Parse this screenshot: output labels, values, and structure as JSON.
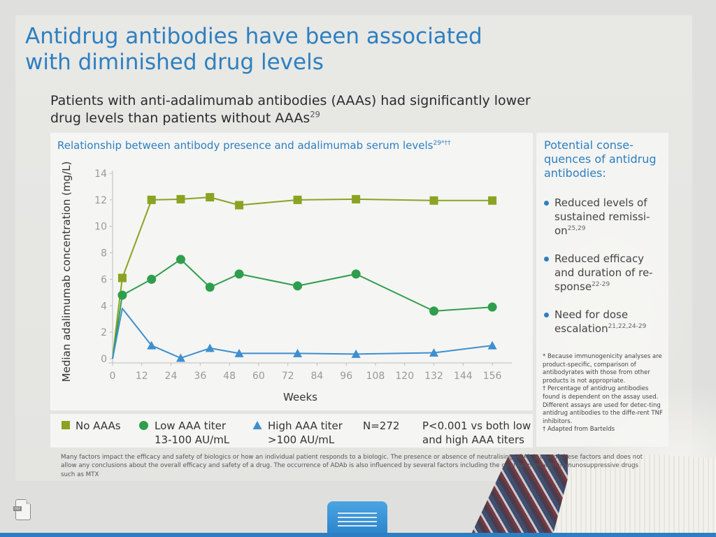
{
  "title": "Antidrug antibodies have been associated with diminished drug levels",
  "subtitle": {
    "text": "Patients with anti-adalimumab antibodies (AAAs) had significantly lower drug levels than patients without AAAs",
    "sup": "29"
  },
  "chart_title": {
    "text": "Relationship between antibody presence and adalimumab serum levels",
    "sup": "29*††"
  },
  "chart_data": {
    "type": "line",
    "xlabel": "Weeks",
    "ylabel": "Median adalimumab concentration (mg/L)",
    "xlim": [
      0,
      160
    ],
    "ylim": [
      0,
      14
    ],
    "xticks": [
      0,
      12,
      24,
      36,
      48,
      60,
      72,
      84,
      96,
      108,
      120,
      132,
      144,
      156
    ],
    "yticks": [
      0,
      2,
      4,
      6,
      8,
      10,
      12,
      14
    ],
    "grid": false,
    "series": [
      {
        "name": "No AAAs",
        "marker": "square",
        "color": "#8aa322",
        "x": [
          0,
          2,
          4,
          16,
          28,
          40,
          52,
          76,
          100,
          132,
          156
        ],
        "y": [
          0,
          3.2,
          6.1,
          12.0,
          12.05,
          12.2,
          11.6,
          12.0,
          12.05,
          11.95,
          11.95
        ],
        "markers_at": [
          4,
          16,
          28,
          40,
          52,
          76,
          100,
          132,
          156
        ]
      },
      {
        "name": "Low AAA titer 13-100 AU/mL",
        "marker": "circle",
        "color": "#2f9e4c",
        "x": [
          0,
          4,
          16,
          28,
          40,
          52,
          76,
          100,
          132,
          156
        ],
        "y": [
          0,
          4.8,
          6.0,
          7.5,
          5.4,
          6.4,
          5.5,
          6.4,
          3.6,
          3.9
        ],
        "markers_at": [
          4,
          16,
          28,
          40,
          52,
          76,
          100,
          132,
          156
        ]
      },
      {
        "name": "High AAA titer >100 AU/mL",
        "marker": "triangle",
        "color": "#3e8fcf",
        "x": [
          0,
          4,
          16,
          28,
          40,
          52,
          76,
          100,
          132,
          156
        ],
        "y": [
          0,
          3.8,
          1.0,
          0.05,
          0.8,
          0.4,
          0.4,
          0.35,
          0.45,
          1.0
        ],
        "markers_at": [
          16,
          28,
          40,
          52,
          76,
          100,
          132,
          156
        ]
      }
    ]
  },
  "legend": {
    "no_aaas": "No AAAs",
    "low_line1": "Low AAA titer",
    "low_line2": "13-100 AU/mL",
    "high_line1": "High AAA titer",
    "high_line2": ">100 AU/mL",
    "n": "N=272",
    "p_line1": "P<0.001 vs both low",
    "p_line2": "and high AAA titers"
  },
  "consequences": {
    "title": "Potential conse-quences of antidrug antibodies:",
    "items": [
      {
        "text": "Reduced levels of sustained remissi-on",
        "sup": "25,29"
      },
      {
        "text": "Reduced efficacy and duration of re-sponse",
        "sup": "22-29"
      },
      {
        "text": "Need for dose escalation",
        "sup": "21,22,24-29"
      }
    ]
  },
  "notes": {
    "n1": "* Because immunogenicity analyses are product-specific, comparison of antibodyrates with those from other products is not appropriate.",
    "n2": "† Percentage of antidrug antibodies found is dependent on the assay used. Different assays are used for detec-ting antidrug antibodies to the diffe-rent TNF inhibitors.",
    "n3": "† Adapted from Bartelds"
  },
  "disclaimer": "Many factors impact the efficacy and safety of biologics or how an individual patient responds to a biologic. The presence or absence of neutralising ADAb is one of these factors and does not allow any conclusions about the overall efficacy and safety of a drug. The occurrence of ADAb is also influenced by several factors including the co-treatment with immunosuppressive drugs such as MTX",
  "doc_icon_tag": "PDF",
  "colors": {
    "accent": "#2d7fc1",
    "no_aaas": "#8aa322",
    "low": "#2f9e4c",
    "high": "#3e8fcf"
  }
}
